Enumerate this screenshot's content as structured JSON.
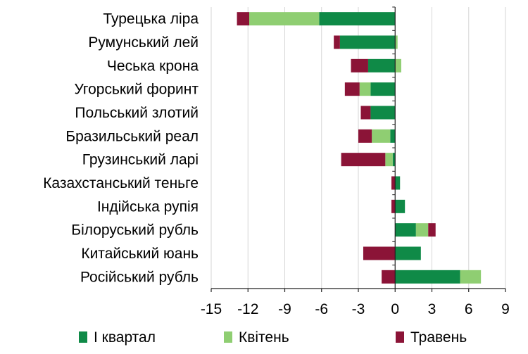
{
  "chart_data": {
    "type": "bar",
    "orientation": "horizontal",
    "stacked": true,
    "categories": [
      "Турецька ліра",
      "Румунський лей",
      "Чеська крона",
      "Угорський форинт",
      "Польський злотий",
      "Бразильський реал",
      "Грузинський ларі",
      "Казахстанський теньге",
      "Індійська рупія",
      "Білоруський рубль",
      "Китайський юань",
      "Російський рубль"
    ],
    "series": [
      {
        "name": "І квартал",
        "color": "#0f8a47",
        "values": [
          -6.2,
          -4.5,
          -2.2,
          -2.0,
          -2.0,
          -0.4,
          -0.2,
          0.4,
          0.8,
          1.7,
          2.1,
          5.3
        ]
      },
      {
        "name": "Квітень",
        "color": "#8fce72",
        "values": [
          -5.7,
          0.2,
          0.5,
          -0.9,
          0.0,
          -1.5,
          -0.6,
          0.0,
          0.0,
          1.0,
          0.0,
          1.7
        ]
      },
      {
        "name": "Травень",
        "color": "#8b1437",
        "values": [
          -1.0,
          -0.5,
          -1.4,
          -1.2,
          -0.8,
          -1.1,
          -3.6,
          -0.3,
          -0.3,
          0.6,
          -2.6,
          -1.1
        ]
      }
    ],
    "xlim": [
      -15,
      9
    ],
    "xticks": [
      -15,
      -12,
      -9,
      -6,
      -3,
      0,
      3,
      6,
      9
    ],
    "grid": "vertical",
    "legend": "bottom"
  }
}
